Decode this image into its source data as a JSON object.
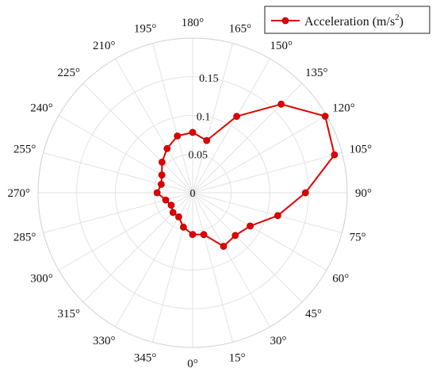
{
  "chart_data": {
    "type": "polar-line",
    "title": "",
    "legend": {
      "placement": "top-right",
      "entries": [
        {
          "label_main": "Acceleration (m/s",
          "label_sup": "2",
          "label_end": ")"
        }
      ]
    },
    "angle_ticks": [
      "0°",
      "15°",
      "30°",
      "45°",
      "60°",
      "75°",
      "90°",
      "105°",
      "120°",
      "135°",
      "150°",
      "165°",
      "180°",
      "195°",
      "210°",
      "225°",
      "240°",
      "255°",
      "270°",
      "285°",
      "300°",
      "315°",
      "330°",
      "345°"
    ],
    "angle_tick_values": [
      0,
      15,
      30,
      45,
      60,
      75,
      90,
      105,
      120,
      135,
      150,
      165,
      180,
      195,
      210,
      225,
      240,
      255,
      270,
      285,
      300,
      315,
      330,
      345
    ],
    "radial_ticks": [
      "0",
      "0.05",
      "0.1",
      "0.15"
    ],
    "radial_tick_values": [
      0,
      0.05,
      0.1,
      0.15
    ],
    "rlim": [
      0,
      0.2
    ],
    "grid": true,
    "zero_direction": "bottom",
    "angle_direction": "counterclockwise",
    "series": [
      {
        "name": "Acceleration (m/s2)",
        "color": "#e00000",
        "theta": [
          0,
          15,
          30,
          45,
          60,
          75,
          90,
          105,
          120,
          135,
          150,
          165,
          180,
          195,
          210,
          225,
          240,
          255,
          270,
          285,
          300,
          315,
          330,
          345,
          360
        ],
        "r": [
          0.054,
          0.056,
          0.08,
          0.078,
          0.086,
          0.114,
          0.146,
          0.19,
          0.198,
          0.162,
          0.114,
          0.07,
          0.078,
          0.076,
          0.066,
          0.056,
          0.046,
          0.042,
          0.046,
          0.036,
          0.032,
          0.036,
          0.036,
          0.046,
          0.054
        ]
      }
    ]
  }
}
